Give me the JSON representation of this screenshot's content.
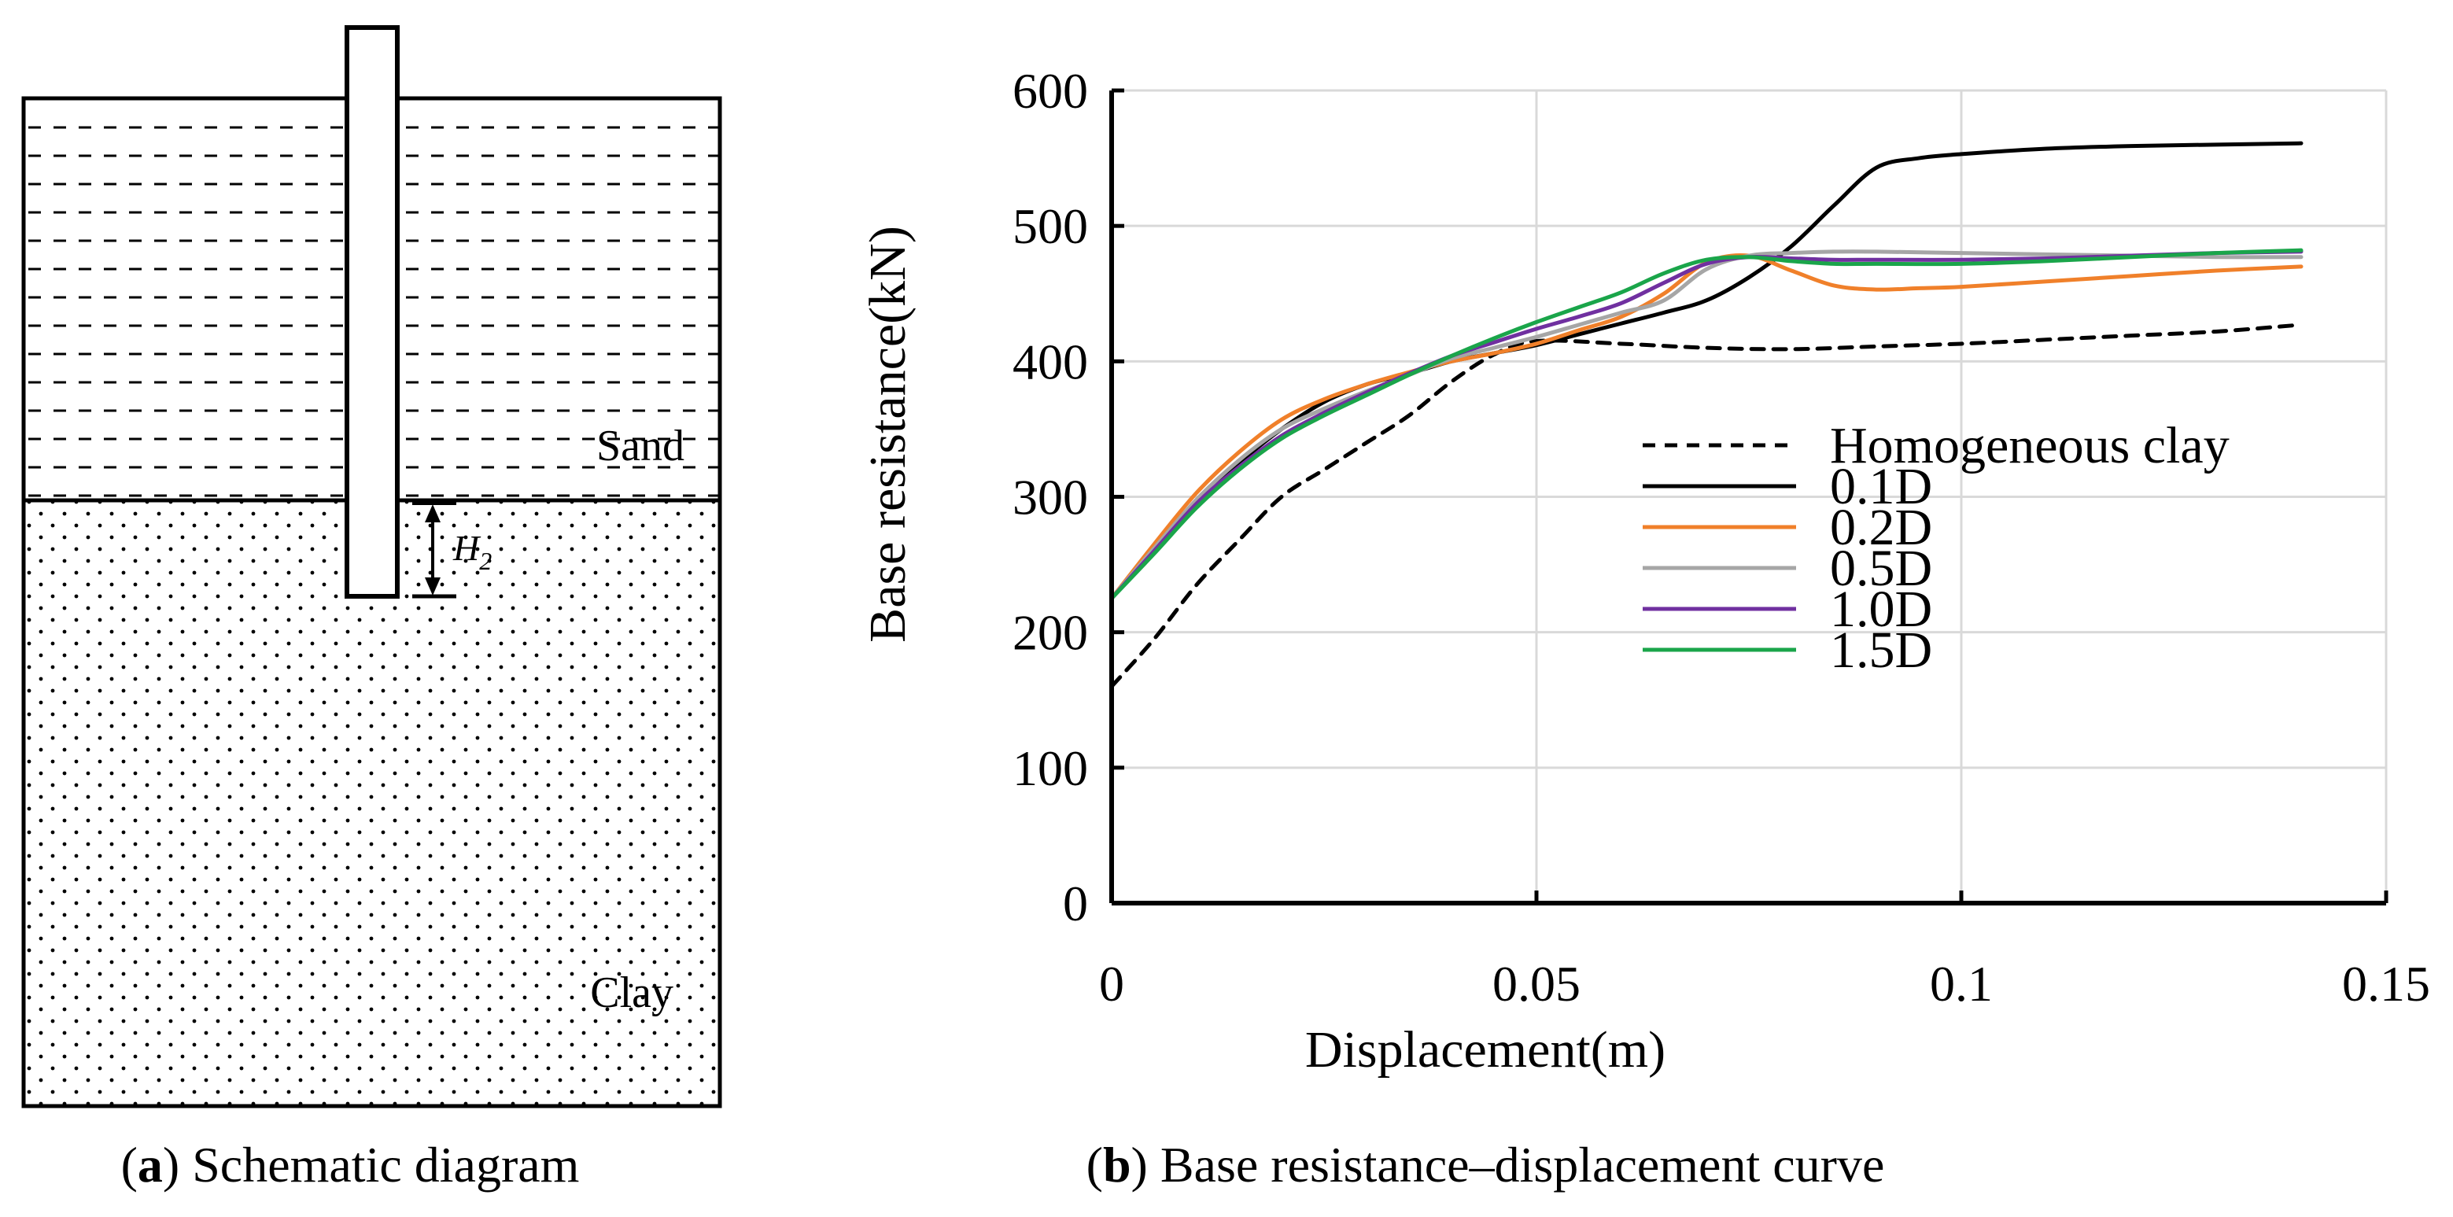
{
  "panel_a": {
    "layer_top": "Sand",
    "layer_bottom": "Clay",
    "dimension_label": "H",
    "dimension_subscript": "2",
    "caption_letter": "a",
    "caption_text": " Schematic diagram"
  },
  "panel_b": {
    "caption_letter": "b",
    "caption_text": " Base resistance–displacement curve"
  },
  "colors": {
    "homogeneous": "#000000",
    "d01": "#000000",
    "d02": "#f0802a",
    "d05": "#a6a6a6",
    "d10": "#7030a0",
    "d15": "#1aa54a",
    "grid": "#d9d9d9"
  },
  "chart_data": {
    "type": "line",
    "title": "",
    "xlabel": "Displacement(m)",
    "ylabel": "Base resistance(kN)",
    "xlim": [
      0,
      0.15
    ],
    "ylim": [
      0,
      600
    ],
    "x_ticks": [
      0,
      0.05,
      0.1,
      0.15
    ],
    "x_tick_labels": [
      "0",
      "0.05",
      "0.1",
      "0.15"
    ],
    "y_ticks": [
      0,
      100,
      200,
      300,
      400,
      500,
      600
    ],
    "y_tick_labels": [
      "0",
      "100",
      "200",
      "300",
      "400",
      "500",
      "600"
    ],
    "grid": "vertical and horizontal",
    "legend_position": "lower-right inside",
    "series": [
      {
        "name": "Homogeneous clay",
        "style": "dashed",
        "color_key": "homogeneous",
        "x": [
          0,
          0.005,
          0.01,
          0.015,
          0.02,
          0.025,
          0.03,
          0.035,
          0.04,
          0.045,
          0.05,
          0.06,
          0.07,
          0.08,
          0.09,
          0.1,
          0.11,
          0.12,
          0.13,
          0.14
        ],
        "y": [
          160,
          195,
          235,
          268,
          300,
          320,
          340,
          360,
          385,
          405,
          415,
          413,
          410,
          409,
          411,
          413,
          416,
          419,
          422,
          427
        ]
      },
      {
        "name": "0.1D",
        "style": "solid",
        "color_key": "d01",
        "x": [
          0,
          0.005,
          0.01,
          0.015,
          0.02,
          0.025,
          0.03,
          0.035,
          0.04,
          0.045,
          0.05,
          0.055,
          0.06,
          0.065,
          0.07,
          0.075,
          0.08,
          0.085,
          0.09,
          0.095,
          0.1,
          0.11,
          0.12,
          0.13,
          0.14
        ],
        "y": [
          225,
          262,
          297,
          325,
          350,
          370,
          383,
          391,
          400,
          406,
          412,
          420,
          428,
          436,
          445,
          462,
          485,
          515,
          543,
          550,
          553,
          557,
          559,
          560,
          561
        ]
      },
      {
        "name": "0.2D",
        "style": "solid",
        "color_key": "d02",
        "x": [
          0,
          0.005,
          0.01,
          0.015,
          0.02,
          0.025,
          0.03,
          0.035,
          0.04,
          0.045,
          0.05,
          0.055,
          0.06,
          0.065,
          0.07,
          0.075,
          0.08,
          0.085,
          0.09,
          0.095,
          0.1,
          0.11,
          0.12,
          0.13,
          0.14
        ],
        "y": [
          225,
          265,
          303,
          333,
          357,
          372,
          383,
          392,
          400,
          406,
          413,
          423,
          433,
          450,
          473,
          478,
          467,
          456,
          453,
          454,
          455,
          459,
          463,
          467,
          470
        ]
      },
      {
        "name": "0.5D",
        "style": "solid",
        "color_key": "d05",
        "x": [
          0,
          0.005,
          0.01,
          0.015,
          0.02,
          0.025,
          0.03,
          0.035,
          0.04,
          0.045,
          0.05,
          0.055,
          0.06,
          0.065,
          0.07,
          0.075,
          0.08,
          0.085,
          0.09,
          0.1,
          0.11,
          0.12,
          0.13,
          0.14
        ],
        "y": [
          225,
          262,
          298,
          327,
          350,
          365,
          378,
          390,
          402,
          410,
          418,
          427,
          436,
          445,
          468,
          478,
          480,
          481,
          481,
          480,
          479,
          478,
          477,
          477
        ]
      },
      {
        "name": "1.0D",
        "style": "solid",
        "color_key": "d10",
        "x": [
          0,
          0.005,
          0.01,
          0.015,
          0.02,
          0.025,
          0.03,
          0.035,
          0.04,
          0.045,
          0.05,
          0.055,
          0.06,
          0.065,
          0.07,
          0.075,
          0.08,
          0.085,
          0.09,
          0.1,
          0.11,
          0.12,
          0.13,
          0.14
        ],
        "y": [
          225,
          260,
          295,
          322,
          345,
          362,
          377,
          391,
          404,
          414,
          424,
          433,
          443,
          458,
          472,
          477,
          476,
          475,
          475,
          475,
          476,
          478,
          480,
          481
        ]
      },
      {
        "name": "1.5D",
        "style": "solid",
        "color_key": "d15",
        "x": [
          0,
          0.005,
          0.01,
          0.015,
          0.02,
          0.025,
          0.03,
          0.035,
          0.04,
          0.045,
          0.05,
          0.055,
          0.06,
          0.065,
          0.07,
          0.075,
          0.08,
          0.085,
          0.09,
          0.1,
          0.11,
          0.12,
          0.13,
          0.14
        ],
        "y": [
          225,
          258,
          292,
          320,
          343,
          360,
          375,
          390,
          404,
          417,
          429,
          440,
          451,
          465,
          475,
          477,
          474,
          472,
          472,
          472,
          474,
          477,
          480,
          482
        ]
      }
    ]
  }
}
